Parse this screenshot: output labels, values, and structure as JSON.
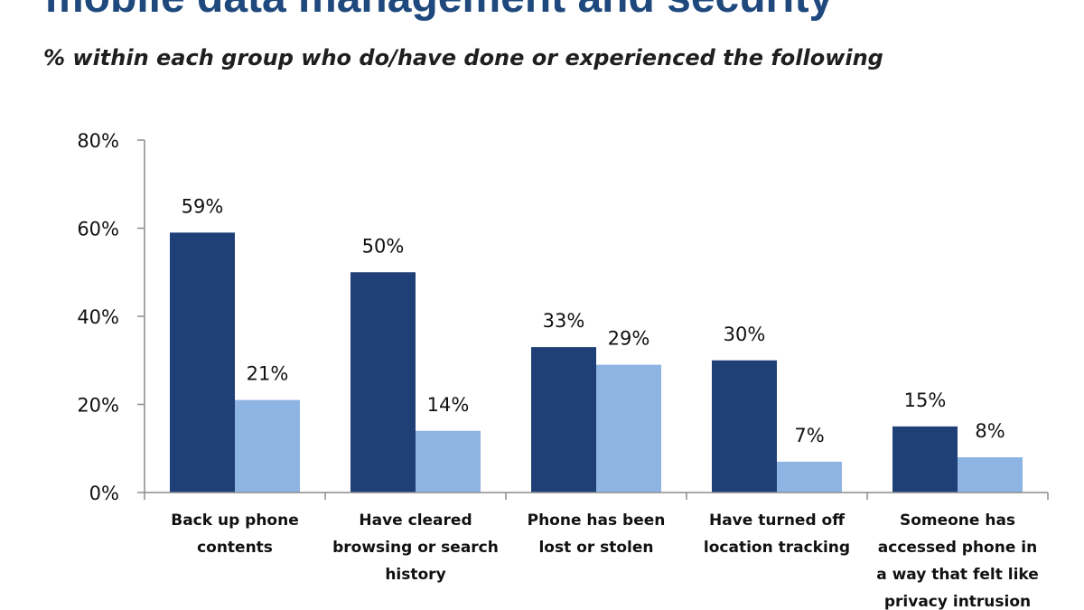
{
  "chart_data": {
    "type": "bar",
    "title": "mobile data management and security",
    "subtitle": "% within each group who do/have done or experienced the following",
    "categories": [
      [
        "Back up phone",
        "contents"
      ],
      [
        "Have cleared",
        "browsing or search",
        "history"
      ],
      [
        "Phone has been",
        "lost or stolen"
      ],
      [
        "Have turned off",
        "location tracking"
      ],
      [
        "Someone has",
        "accessed phone in",
        "a way that felt like",
        "privacy intrusion"
      ]
    ],
    "series": [
      {
        "values": [
          59,
          50,
          33,
          30,
          15
        ],
        "color": "#1f3f77"
      },
      {
        "values": [
          21,
          14,
          29,
          7,
          8
        ],
        "color": "#8eb4e3"
      }
    ],
    "value_labels": [
      [
        "59%",
        "50%",
        "33%",
        "30%",
        "15%"
      ],
      [
        "21%",
        "14%",
        "29%",
        "7%",
        "8%"
      ]
    ],
    "yticks": [
      "0%",
      "20%",
      "40%",
      "60%",
      "80%"
    ],
    "ylim": [
      0,
      80
    ],
    "xlabel": "",
    "ylabel": "",
    "grid": false,
    "legend": "none"
  }
}
